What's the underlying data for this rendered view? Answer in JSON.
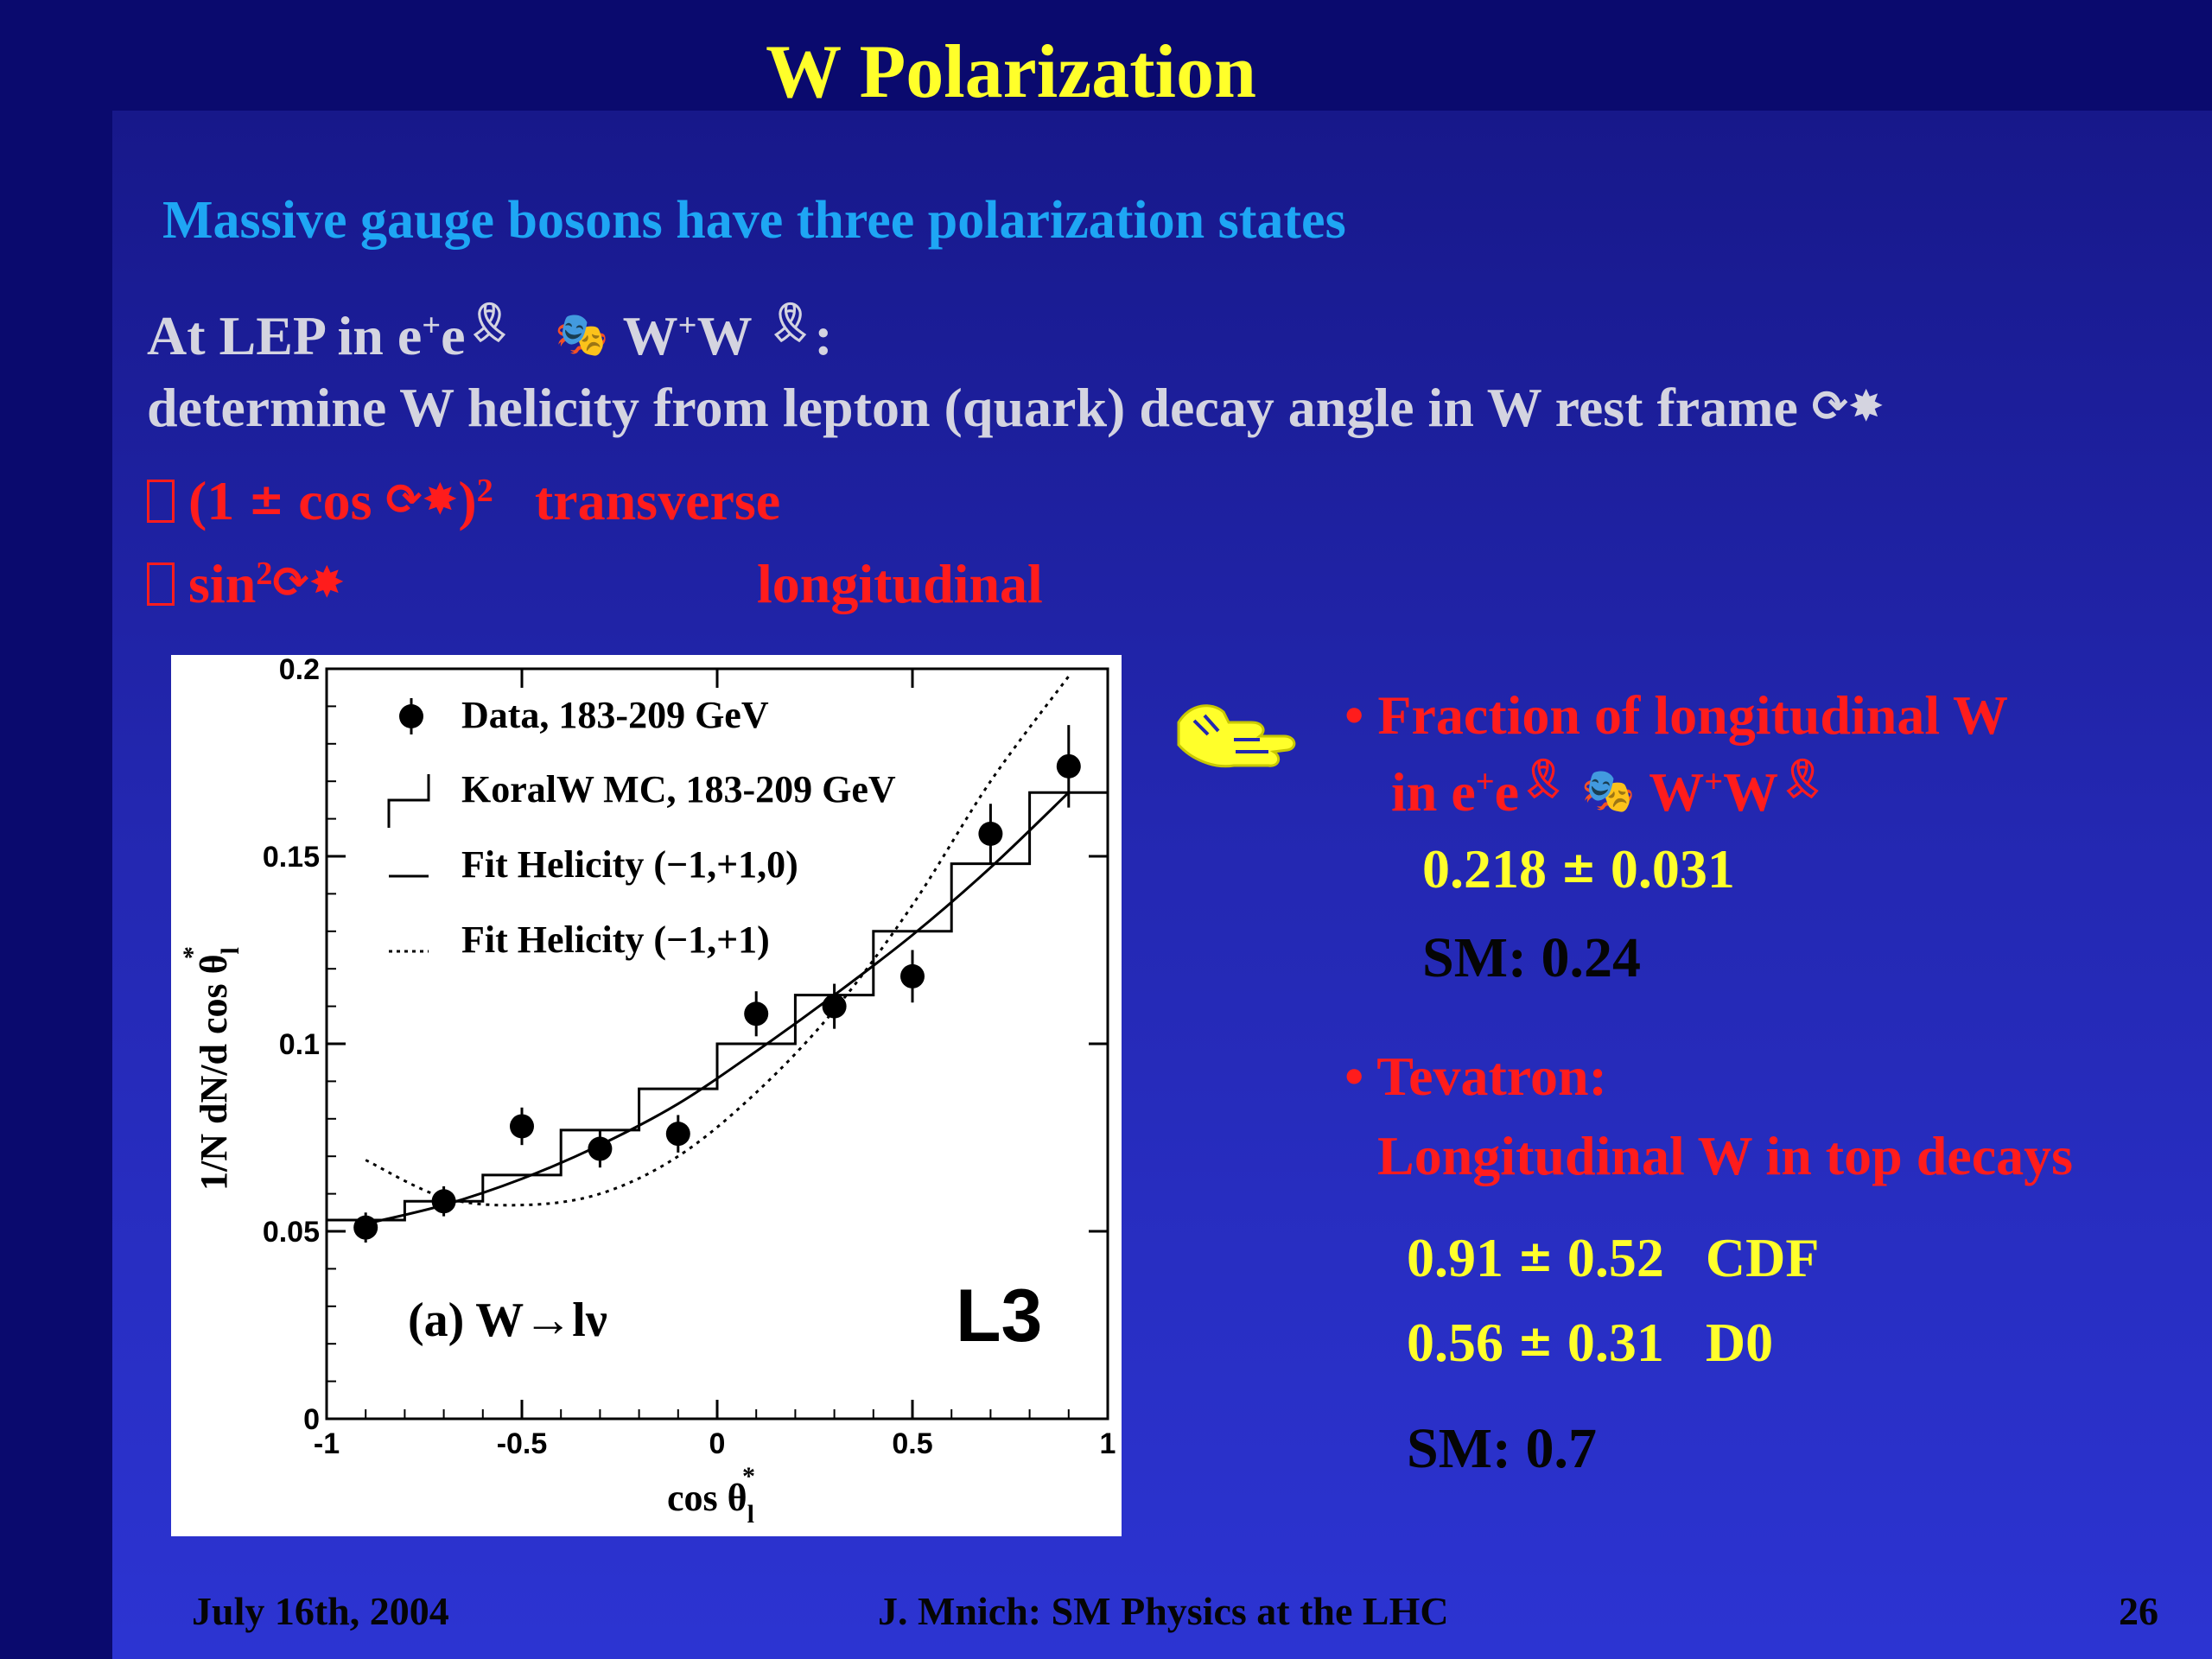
{
  "slide": {
    "title": "W Polarization",
    "subtitle": "Massive gauge bosons have three polarization states",
    "lep_line": {
      "prefix": "At LEP in e",
      "e_sup1": "+",
      "e": "e",
      "arrow_glyph": "🎭",
      "ww": "W",
      "w_sup": "+",
      "w2": "W",
      "suffix": ":"
    },
    "determine_line": "determine W helicity from lepton (quark) decay angle in W rest frame",
    "transverse_line": {
      "box": "",
      "formula_a": "(1",
      "pm": "±",
      "formula_b": "cos",
      "formula_c": ")",
      "sup2": "2",
      "label": "transverse"
    },
    "longitudinal_line": {
      "box": "",
      "formula_a": "sin",
      "sup2": "2",
      "label": "longitudinal"
    },
    "right_panel": {
      "bullet1_line1": "• Fraction of longitudinal W",
      "bullet1_line2_a": "in e",
      "bullet1_line2_sup": "+",
      "bullet1_line2_b": "e",
      "bullet1_line2_c": "W",
      "bullet1_line2_sup2": "+",
      "bullet1_line2_d": "W",
      "lep_value": "0.218",
      "lep_pm": "±",
      "lep_err": "0.031",
      "lep_sm": "SM: 0.24",
      "bullet2_line1": "• Tevatron:",
      "bullet2_line2": "Longitudinal W in top decays",
      "cdf_value": "0.91",
      "cdf_pm": "±",
      "cdf_err": "0.52",
      "cdf_label": "CDF",
      "d0_value": "0.56",
      "d0_pm": "±",
      "d0_err": "0.31",
      "d0_label": "D0",
      "tev_sm": "SM: 0.7"
    },
    "footer": {
      "date": "July 16th, 2004",
      "center": "J. Mnich: SM Physics at the LHC",
      "page": "26"
    }
  },
  "colors": {
    "title": "#ffff2a",
    "subtitle": "#1ea6f4",
    "body_text": "#d4d4e0",
    "highlight_red": "#ff1c1c",
    "value_yellow": "#ffff2a"
  },
  "chart_data": {
    "type": "scatter",
    "xlabel": "cos θ",
    "xlabel_sub": "l",
    "xlabel_sup": "*",
    "ylabel": "1/N dN/d cos θ",
    "ylabel_sub": "l",
    "ylabel_sup": "*",
    "xlim": [
      -1,
      1
    ],
    "ylim": [
      0,
      0.2
    ],
    "xticks": [
      -1,
      -0.5,
      0,
      0.5,
      1
    ],
    "xtick_labels": [
      "-1",
      "-0.5",
      "0",
      "0.5",
      "1"
    ],
    "yticks": [
      0,
      0.05,
      0.1,
      0.15,
      0.2
    ],
    "ytick_labels": [
      "0",
      "0.05",
      "0.1",
      "0.15",
      "0.2"
    ],
    "annotation_left": "(a) W→lν",
    "annotation_right": "L3",
    "legend": [
      "Data, 183-209 GeV",
      "KoralW MC, 183-209 GeV",
      "Fit Helicity (−1,+1,0)",
      "Fit Helicity (−1,+1)"
    ],
    "series": [
      {
        "name": "Data, 183-209 GeV",
        "kind": "points",
        "x": [
          -0.9,
          -0.7,
          -0.5,
          -0.3,
          -0.1,
          0.1,
          0.3,
          0.5,
          0.7,
          0.9
        ],
        "y": [
          0.051,
          0.058,
          0.078,
          0.072,
          0.076,
          0.108,
          0.11,
          0.118,
          0.156,
          0.174
        ],
        "err": [
          0.004,
          0.004,
          0.005,
          0.005,
          0.005,
          0.006,
          0.006,
          0.007,
          0.008,
          0.011
        ]
      },
      {
        "name": "KoralW MC, 183-209 GeV",
        "kind": "step",
        "edges": [
          -1,
          -0.8,
          -0.6,
          -0.4,
          -0.2,
          0,
          0.2,
          0.4,
          0.6,
          0.8,
          1
        ],
        "y": [
          0.053,
          0.058,
          0.065,
          0.077,
          0.088,
          0.1,
          0.113,
          0.13,
          0.148,
          0.167
        ]
      },
      {
        "name": "Fit Helicity (−1,+1,0)",
        "kind": "curve",
        "x": [
          -0.9,
          -0.7,
          -0.5,
          -0.3,
          -0.1,
          0.1,
          0.3,
          0.5,
          0.7,
          0.9
        ],
        "y": [
          0.052,
          0.057,
          0.064,
          0.073,
          0.084,
          0.098,
          0.113,
          0.129,
          0.147,
          0.167
        ]
      },
      {
        "name": "Fit Helicity (−1,+1)",
        "kind": "curve-dotted",
        "x": [
          -0.9,
          -0.7,
          -0.5,
          -0.3,
          -0.1,
          0.1,
          0.3,
          0.5,
          0.7,
          0.9
        ],
        "y": [
          0.069,
          0.059,
          0.057,
          0.06,
          0.07,
          0.087,
          0.109,
          0.137,
          0.17,
          0.198
        ]
      }
    ]
  }
}
